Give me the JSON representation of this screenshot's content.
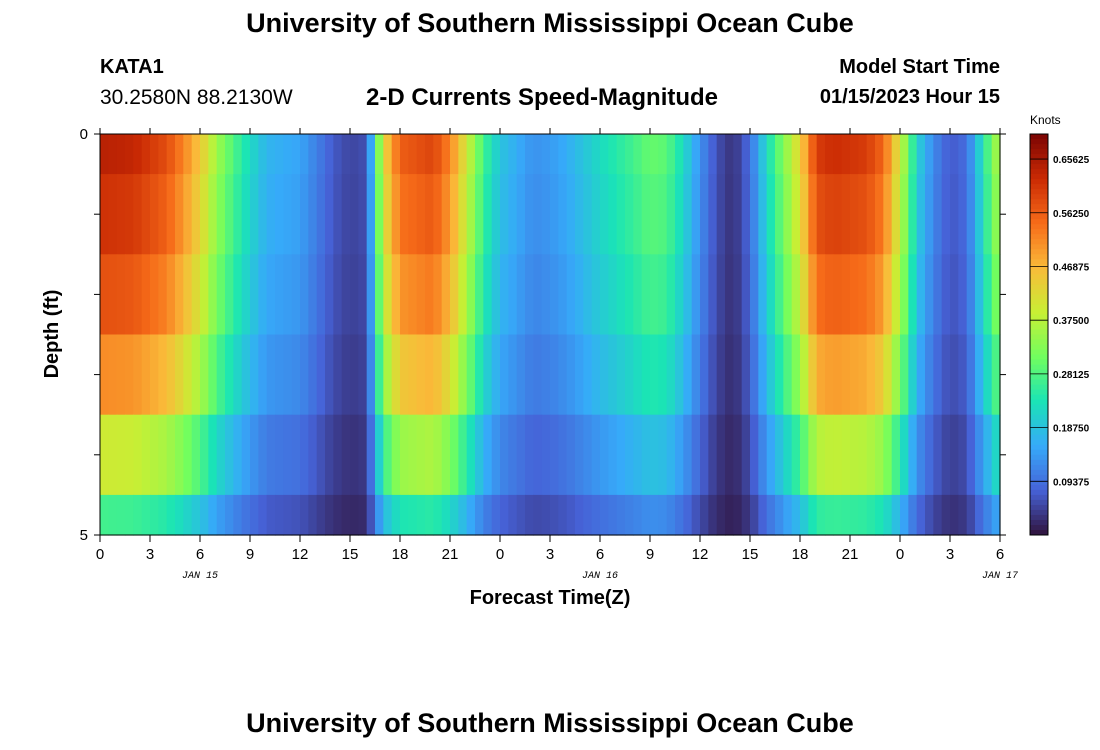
{
  "header": {
    "title": "University of Southern Mississippi Ocean Cube",
    "station": "KATA1",
    "coordinates": "30.2580N  88.2130W",
    "subtitle": "2-D Currents Speed-Magnitude",
    "model_start_label": "Model Start Time",
    "model_start_value": "01/15/2023 Hour 15"
  },
  "footer": {
    "title": "University of Southern Mississippi Ocean Cube"
  },
  "chart_data": {
    "type": "heatmap",
    "xlabel": "Forecast Time(Z)",
    "ylabel": "Depth (ft)",
    "colorbar_label": "Knots",
    "colorbar_ticks": [
      "0.65625",
      "0.56250",
      "0.46875",
      "0.37500",
      "0.28125",
      "0.18750",
      "0.09375"
    ],
    "colorbar_range": [
      0.0,
      0.7
    ],
    "colors": [
      "#30123b",
      "#4662d7",
      "#36aaf9",
      "#1ae4b6",
      "#72fe5e",
      "#c8ef34",
      "#faba39",
      "#f66b19",
      "#ca2a04",
      "#7a0403"
    ],
    "y_tick_labels": [
      "0",
      "5"
    ],
    "ylim": [
      0,
      5
    ],
    "depth_levels_ft": [
      0,
      1,
      2,
      3,
      4,
      5
    ],
    "x_tick_labels": [
      "0",
      "3",
      "6",
      "9",
      "12",
      "15",
      "18",
      "21",
      "0",
      "3",
      "6",
      "9",
      "12",
      "15",
      "18",
      "21",
      "0",
      "3",
      "6"
    ],
    "date_labels": [
      {
        "text": "JAN 15",
        "hour": 6
      },
      {
        "text": "JAN 16",
        "hour": 30
      },
      {
        "text": "JAN 17",
        "hour": 54
      }
    ],
    "xlim_hours": [
      0,
      54
    ],
    "speed_timeseries": {
      "hours": [
        0,
        2,
        4,
        5,
        6,
        7,
        8,
        9,
        10,
        12,
        13,
        14,
        15,
        16,
        17,
        18,
        20,
        21,
        22,
        23,
        24,
        26,
        27,
        28,
        30,
        32,
        33,
        34,
        35,
        36,
        37,
        38,
        39,
        40,
        42,
        43,
        44,
        46,
        47,
        48,
        49,
        50,
        51,
        52,
        53,
        54
      ],
      "surface_knots": [
        0.64,
        0.63,
        0.58,
        0.52,
        0.45,
        0.35,
        0.28,
        0.22,
        0.17,
        0.15,
        0.11,
        0.07,
        0.05,
        0.06,
        0.42,
        0.56,
        0.59,
        0.52,
        0.4,
        0.27,
        0.19,
        0.13,
        0.14,
        0.16,
        0.22,
        0.27,
        0.3,
        0.29,
        0.22,
        0.13,
        0.06,
        0.03,
        0.09,
        0.22,
        0.43,
        0.6,
        0.62,
        0.6,
        0.55,
        0.4,
        0.21,
        0.12,
        0.07,
        0.09,
        0.24,
        0.38
      ]
    },
    "depth_factors": [
      1.0,
      0.96,
      0.9,
      0.8,
      0.62,
      0.42
    ]
  }
}
